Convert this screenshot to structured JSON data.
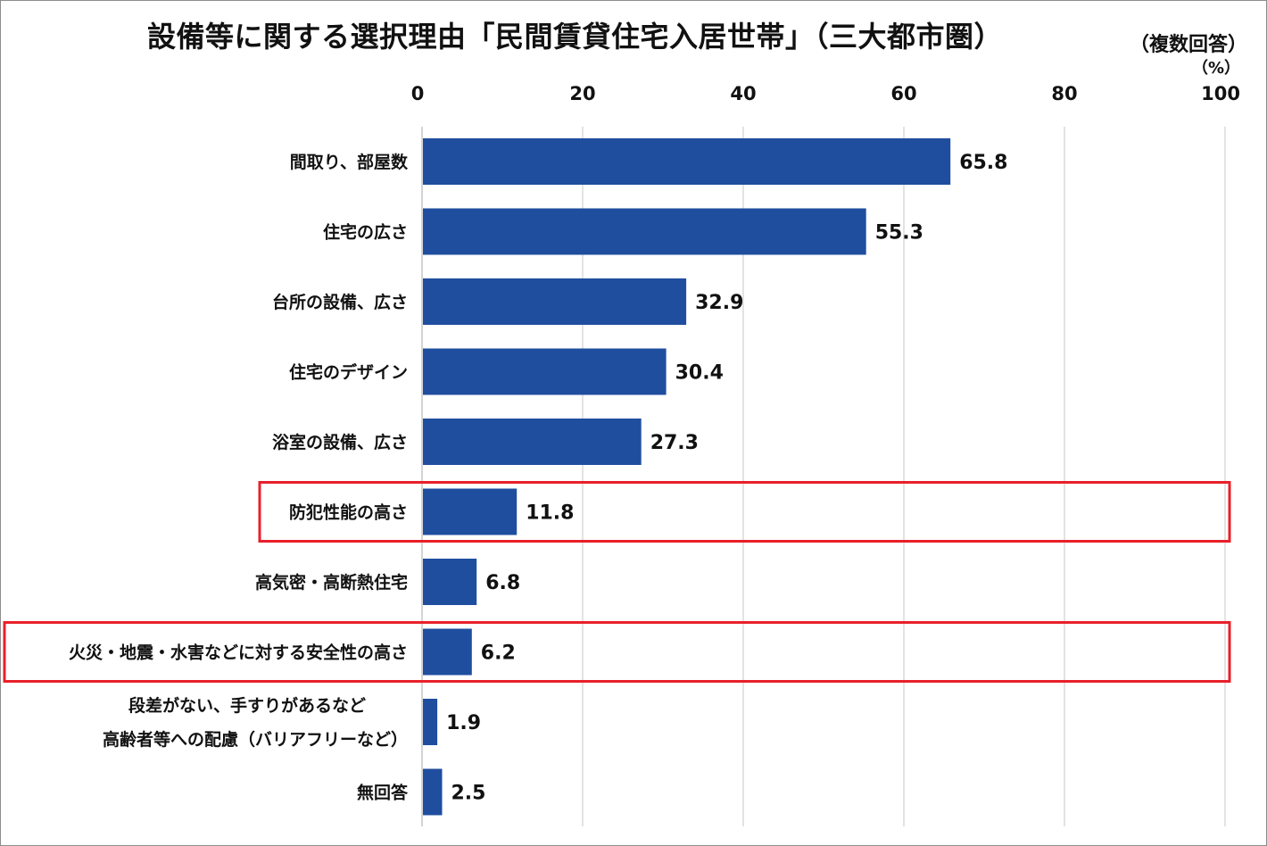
{
  "chart_data": {
    "type": "bar",
    "orientation": "horizontal",
    "title": "設備等に関する選択理由「民間賃貸住宅入居世帯」（三大都市圏）",
    "note": "（複数回答）",
    "unit": "（%）",
    "xlim": [
      0,
      100
    ],
    "xticks": [
      0,
      20,
      40,
      60,
      80,
      100
    ],
    "grid": true,
    "categories": [
      "間取り、部屋数",
      "住宅の広さ",
      "台所の設備、広さ",
      "住宅のデザイン",
      "浴室の設備、広さ",
      "防犯性能の高さ",
      "高気密・高断熱住宅",
      "火災・地震・水害などに対する安全性の高さ",
      "段差がない、手すりがあるなど\n高齢者等への配慮（バリアフリーなど）",
      "無回答"
    ],
    "values": [
      65.8,
      55.3,
      32.9,
      30.4,
      27.3,
      11.8,
      6.8,
      6.2,
      1.9,
      2.5
    ],
    "value_labels": [
      "65.8",
      "55.3",
      "32.9",
      "30.4",
      "27.3",
      "11.8",
      "6.8",
      "6.2",
      "1.9",
      "2.5"
    ],
    "highlighted": [
      "防犯性能の高さ",
      "火災・地震・水害などに対する安全性の高さ"
    ],
    "bar_color": "#1f4e9f",
    "highlight_color": "#e8202a",
    "grid_color": "#d0d0d0"
  }
}
